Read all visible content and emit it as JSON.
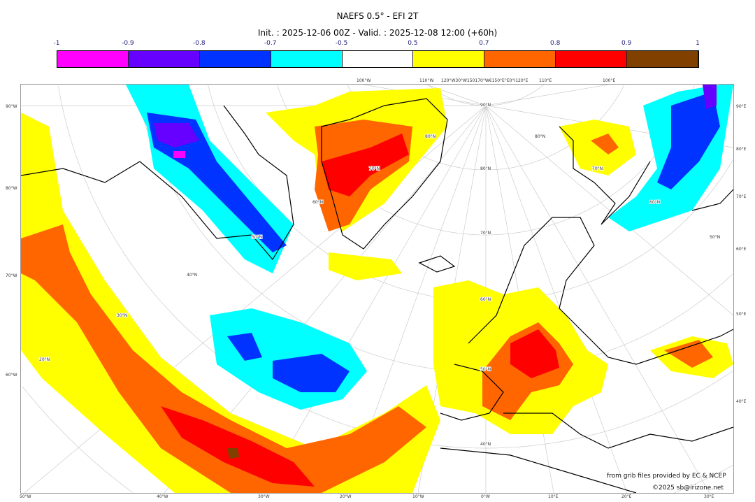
{
  "title": "NAEFS 0.5° - EFI 2T",
  "subtitle": "Init. : 2025-12-06 00Z - Valid. : 2025-12-08 12:00 (+60h)",
  "colorbar": {
    "ticks": [
      "-1",
      "-0.9",
      "-0.8",
      "-0.7",
      "-0.5",
      "0.5",
      "0.7",
      "0.8",
      "0.9",
      "1"
    ],
    "colors": [
      "#ff00ff",
      "#6600ff",
      "#0033ff",
      "#00ffff",
      "#ffffff",
      "#ffff00",
      "#ff6600",
      "#ff0000",
      "#804000"
    ]
  },
  "axes": {
    "top": [
      "100°W",
      "110°W",
      "120°W30°W150170°W€150°E°E0°I120°E",
      "110°E",
      "100°E"
    ],
    "left": [
      "90°W",
      "80°W",
      "70°W",
      "60°W"
    ],
    "right": [
      "90°E",
      "80°E",
      "70°E",
      "60°E",
      "50°E",
      "40°E"
    ],
    "bottom": [
      "50°W",
      "40°W",
      "30°W",
      "20°W",
      "10°W",
      "0°W",
      "10°E",
      "20°E",
      "30°E"
    ],
    "lat_labels": [
      "90°N",
      "80°N",
      "70°N",
      "60°N",
      "50°N",
      "40°N",
      "50°N",
      "60°N",
      "70°N",
      "80°N",
      "80°N",
      "70°N",
      "60°N",
      "50°N",
      "40°N",
      "30°N",
      "20°N"
    ]
  },
  "credits": {
    "source": "from grib files provided by EC & NCEP",
    "copyright": "©2025 sb@irizone.net"
  }
}
